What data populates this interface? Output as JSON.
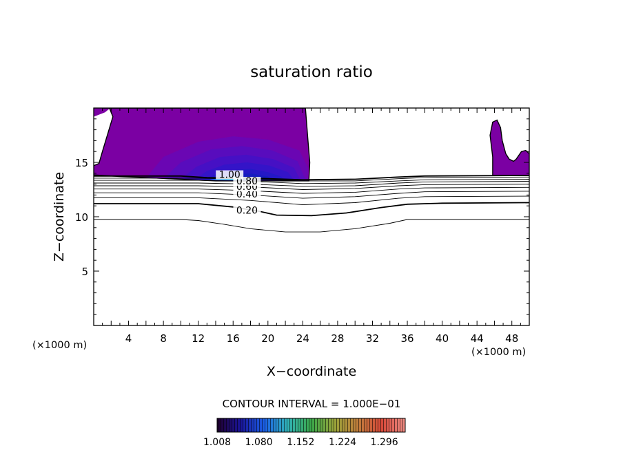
{
  "chart_data": {
    "type": "contour",
    "title": "saturation ratio",
    "xlabel": "X−coordinate",
    "ylabel": "Z−coordinate",
    "x_unit_left": "(×1000 m)",
    "x_unit_right": "(×1000 m)",
    "xlim": [
      0,
      50
    ],
    "ylim": [
      0,
      20
    ],
    "x_ticks": [
      4,
      8,
      12,
      16,
      20,
      24,
      28,
      32,
      36,
      40,
      44,
      48
    ],
    "x_tick_labels": [
      "4",
      "8",
      "12",
      "16",
      "20",
      "24",
      "28",
      "32",
      "36",
      "40",
      "44",
      "48"
    ],
    "y_ticks": [
      5,
      10,
      15
    ],
    "y_tick_labels": [
      "5",
      "10",
      "15"
    ],
    "contour_interval_text": "CONTOUR INTERVAL = 1.000E−01",
    "contour_labels": [
      {
        "text": "0.20",
        "x": 17.6,
        "y": 10.4
      },
      {
        "text": "0.40",
        "x": 17.6,
        "y": 11.9
      },
      {
        "text": "0.60",
        "x": 17.6,
        "y": 12.6
      },
      {
        "text": "0.80",
        "x": 17.6,
        "y": 13.1
      },
      {
        "text": "1.00",
        "x": 15.6,
        "y": 13.7
      }
    ],
    "contour_lines": [
      {
        "level": 0.1,
        "bold": false,
        "points": [
          [
            0,
            9.75
          ],
          [
            10,
            9.75
          ],
          [
            12,
            9.65
          ],
          [
            15,
            9.3
          ],
          [
            18,
            8.9
          ],
          [
            22,
            8.6
          ],
          [
            26,
            8.6
          ],
          [
            30,
            8.9
          ],
          [
            34,
            9.4
          ],
          [
            36,
            9.75
          ],
          [
            40,
            9.75
          ],
          [
            50,
            9.75
          ]
        ]
      },
      {
        "level": 0.2,
        "bold": true,
        "points": [
          [
            0,
            11.2
          ],
          [
            12,
            11.2
          ],
          [
            16,
            10.9
          ],
          [
            19,
            10.5
          ],
          [
            21,
            10.15
          ],
          [
            25,
            10.1
          ],
          [
            29,
            10.35
          ],
          [
            33,
            10.85
          ],
          [
            36,
            11.15
          ],
          [
            40,
            11.25
          ],
          [
            50,
            11.3
          ]
        ]
      },
      {
        "level": 0.3,
        "bold": false,
        "points": [
          [
            0,
            11.75
          ],
          [
            12,
            11.75
          ],
          [
            18,
            11.5
          ],
          [
            24,
            11.1
          ],
          [
            30,
            11.3
          ],
          [
            35,
            11.7
          ],
          [
            38,
            11.85
          ],
          [
            50,
            11.9
          ]
        ]
      },
      {
        "level": 0.4,
        "bold": false,
        "points": [
          [
            0,
            12.2
          ],
          [
            12,
            12.2
          ],
          [
            18,
            12.0
          ],
          [
            24,
            11.7
          ],
          [
            30,
            11.85
          ],
          [
            35,
            12.15
          ],
          [
            38,
            12.3
          ],
          [
            50,
            12.35
          ]
        ]
      },
      {
        "level": 0.5,
        "bold": false,
        "points": [
          [
            0,
            12.55
          ],
          [
            12,
            12.55
          ],
          [
            18,
            12.4
          ],
          [
            24,
            12.15
          ],
          [
            30,
            12.25
          ],
          [
            35,
            12.55
          ],
          [
            38,
            12.65
          ],
          [
            50,
            12.7
          ]
        ]
      },
      {
        "level": 0.6,
        "bold": false,
        "points": [
          [
            0,
            12.85
          ],
          [
            12,
            12.85
          ],
          [
            18,
            12.75
          ],
          [
            24,
            12.5
          ],
          [
            30,
            12.6
          ],
          [
            35,
            12.85
          ],
          [
            38,
            12.95
          ],
          [
            50,
            13.0
          ]
        ]
      },
      {
        "level": 0.7,
        "bold": false,
        "points": [
          [
            0,
            13.1
          ],
          [
            12,
            13.1
          ],
          [
            18,
            13.0
          ],
          [
            24,
            12.8
          ],
          [
            30,
            12.85
          ],
          [
            35,
            13.1
          ],
          [
            38,
            13.2
          ],
          [
            50,
            13.25
          ]
        ]
      },
      {
        "level": 0.8,
        "bold": false,
        "points": [
          [
            0,
            13.35
          ],
          [
            12,
            13.35
          ],
          [
            18,
            13.25
          ],
          [
            24,
            13.05
          ],
          [
            30,
            13.1
          ],
          [
            35,
            13.3
          ],
          [
            38,
            13.4
          ],
          [
            50,
            13.45
          ]
        ]
      },
      {
        "level": 0.9,
        "bold": false,
        "points": [
          [
            0,
            13.55
          ],
          [
            12,
            13.55
          ],
          [
            18,
            13.45
          ],
          [
            24,
            13.3
          ],
          [
            30,
            13.3
          ],
          [
            35,
            13.5
          ],
          [
            38,
            13.6
          ],
          [
            50,
            13.65
          ]
        ]
      },
      {
        "level": 1.0,
        "bold": true,
        "points": [
          [
            0,
            13.75
          ],
          [
            10,
            13.75
          ],
          [
            13,
            13.6
          ],
          [
            18,
            13.55
          ],
          [
            24,
            13.4
          ],
          [
            30,
            13.45
          ],
          [
            35,
            13.65
          ],
          [
            38,
            13.75
          ],
          [
            50,
            13.8
          ]
        ]
      }
    ],
    "shaded_regions": [
      {
        "color": "#7b00a3",
        "closed": true,
        "points": [
          [
            1,
            20
          ],
          [
            24.3,
            20
          ],
          [
            24.6,
            17
          ],
          [
            24.8,
            15
          ],
          [
            24.7,
            13.3
          ],
          [
            14,
            13.3
          ],
          [
            10,
            13.45
          ],
          [
            6,
            13.6
          ],
          [
            3,
            13.7
          ],
          [
            0,
            13.85
          ],
          [
            0,
            14.7
          ],
          [
            0.6,
            14.9
          ],
          [
            1,
            16
          ],
          [
            1.6,
            17.6
          ],
          [
            2.2,
            19.2
          ],
          [
            1.8,
            20
          ]
        ]
      },
      {
        "color": "#7b00a3",
        "closed": true,
        "points": [
          [
            0,
            20
          ],
          [
            1.9,
            20
          ],
          [
            1.3,
            19.6
          ],
          [
            0,
            19.2
          ]
        ]
      },
      {
        "color": "#7b00a3",
        "closed": true,
        "points": [
          [
            45.8,
            18.7
          ],
          [
            46.3,
            18.9
          ],
          [
            46.7,
            18.2
          ],
          [
            46.9,
            17
          ],
          [
            47.3,
            15.8
          ],
          [
            47.7,
            15.3
          ],
          [
            48.2,
            15.1
          ],
          [
            48.5,
            15.3
          ],
          [
            49.1,
            16.0
          ],
          [
            49.6,
            16.1
          ],
          [
            50,
            15.8
          ],
          [
            50,
            13.8
          ],
          [
            45.8,
            13.8
          ],
          [
            45.8,
            15.5
          ],
          [
            45.5,
            17.5
          ]
        ]
      },
      {
        "color": "#6a06b3",
        "closed": true,
        "points": [
          [
            6,
            13.55
          ],
          [
            8,
            15.5
          ],
          [
            12,
            16.9
          ],
          [
            16,
            17.4
          ],
          [
            20,
            17.1
          ],
          [
            23.6,
            16.1
          ],
          [
            24.6,
            14.5
          ],
          [
            24.6,
            13.3
          ],
          [
            14,
            13.3
          ]
        ]
      },
      {
        "color": "#580cbd",
        "closed": true,
        "points": [
          [
            8,
            13.5
          ],
          [
            10,
            15.0
          ],
          [
            13.5,
            16.2
          ],
          [
            17,
            16.5
          ],
          [
            20.5,
            16.1
          ],
          [
            23.4,
            15.1
          ],
          [
            24.3,
            13.4
          ],
          [
            14,
            13.3
          ]
        ]
      },
      {
        "color": "#4610c4",
        "closed": true,
        "points": [
          [
            10,
            13.45
          ],
          [
            11.8,
            14.6
          ],
          [
            14.5,
            15.5
          ],
          [
            17.5,
            15.7
          ],
          [
            20.6,
            15.3
          ],
          [
            23,
            14.5
          ],
          [
            23.7,
            13.4
          ],
          [
            14,
            13.3
          ]
        ]
      },
      {
        "color": "#3414c8",
        "closed": true,
        "points": [
          [
            11.5,
            13.4
          ],
          [
            13,
            14.2
          ],
          [
            15,
            14.8
          ],
          [
            17.6,
            15.0
          ],
          [
            20.2,
            14.7
          ],
          [
            22.3,
            14.1
          ],
          [
            23.0,
            13.35
          ],
          [
            14,
            13.3
          ]
        ]
      },
      {
        "color": "#2418c6",
        "closed": true,
        "points": [
          [
            12.5,
            13.4
          ],
          [
            14,
            13.9
          ],
          [
            16,
            14.3
          ],
          [
            18,
            14.4
          ],
          [
            20,
            14.1
          ],
          [
            21.5,
            13.7
          ],
          [
            22,
            13.35
          ]
        ]
      },
      {
        "color": "#161cbf",
        "closed": true,
        "points": [
          [
            13,
            13.4
          ],
          [
            14.5,
            13.75
          ],
          [
            16.5,
            14.0
          ],
          [
            18.3,
            13.95
          ],
          [
            20,
            13.7
          ],
          [
            20.6,
            13.35
          ]
        ]
      },
      {
        "color": "#1c6ee6",
        "closed": true,
        "points": [
          [
            13.3,
            13.4
          ],
          [
            14.8,
            13.65
          ],
          [
            16.2,
            13.7
          ],
          [
            17.6,
            13.6
          ],
          [
            18.1,
            13.35
          ]
        ]
      },
      {
        "color": "#26c8ee",
        "closed": true,
        "points": [
          [
            13.8,
            13.4
          ],
          [
            15,
            13.58
          ],
          [
            16.1,
            13.6
          ],
          [
            16.9,
            13.5
          ],
          [
            17.1,
            13.35
          ]
        ]
      },
      {
        "color": "#ffffff",
        "closed": true,
        "points": [
          [
            11.2,
            13.32
          ],
          [
            12.2,
            13.38
          ],
          [
            12.4,
            13.3
          ]
        ]
      }
    ],
    "colorbar": {
      "min": 1.008,
      "max": 1.332,
      "tick_labels": [
        "1.008",
        "1.080",
        "1.152",
        "1.224",
        "1.296"
      ],
      "stops": [
        "#20002e",
        "#1a1498",
        "#1b5fe8",
        "#31b3b8",
        "#3aa84a",
        "#9aa33a",
        "#c07d3c",
        "#d7493a",
        "#ee8e86"
      ]
    }
  }
}
